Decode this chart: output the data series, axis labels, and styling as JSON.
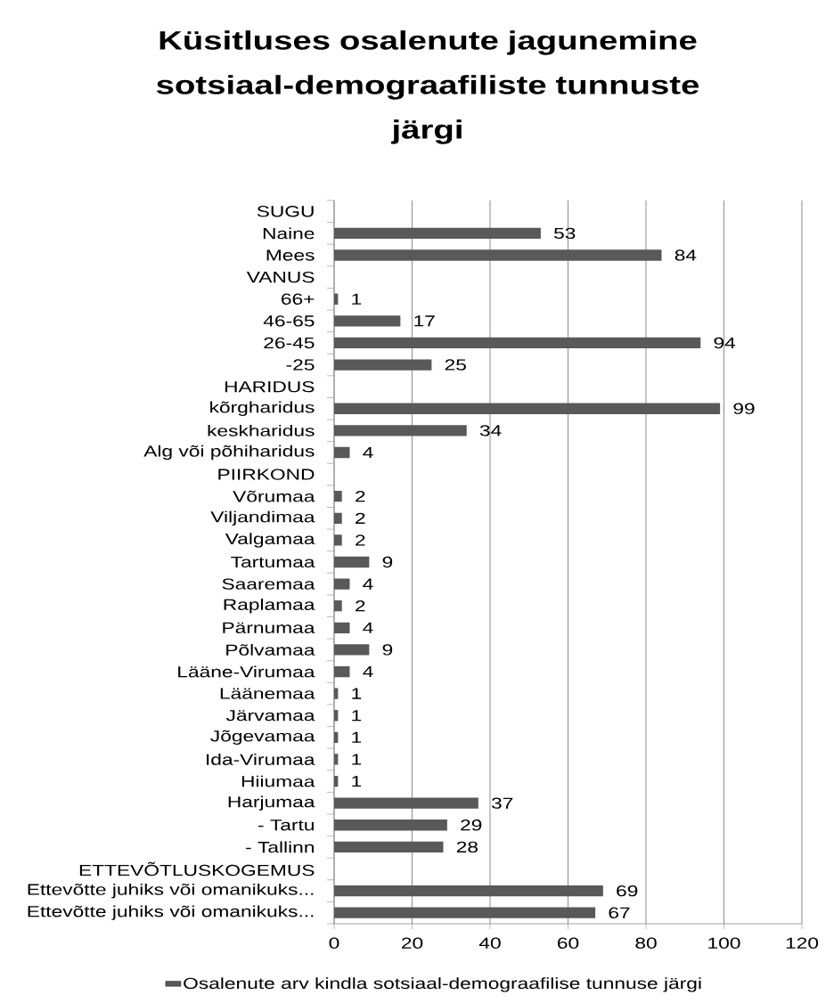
{
  "chart_data": {
    "type": "bar",
    "orientation": "horizontal",
    "title": "Küsitluses osalenute jagunemine sotsiaal-demograafiliste tunnuste järgi",
    "categories": [
      "SUGU",
      "Naine",
      "Mees",
      "VANUS",
      "66+",
      "46-65",
      "26-45",
      "-25",
      "HARIDUS",
      "kõrgharidus",
      "keskharidus",
      "Alg või põhiharidus",
      "PIIRKOND",
      "Võrumaa",
      "Viljandimaa",
      "Valgamaa",
      "Tartumaa",
      "Saaremaa",
      "Raplamaa",
      "Pärnumaa",
      "Põlvamaa",
      "Lääne-Virumaa",
      "Läänemaa",
      "Järvamaa",
      "Jõgevamaa",
      "Ida-Virumaa",
      "Hiiumaa",
      "Harjumaa",
      "- Tartu",
      "- Tallinn",
      "ETTEVÕTLUSKOGEMUS",
      "Ettevõtte juhiks või omanikuks...",
      "Ettevõtte juhiks või omanikuks..."
    ],
    "series": [
      {
        "name": "Osalenute arv kindla sotsiaal-demograafilise tunnuse järgi",
        "color": "#595959",
        "values": [
          null,
          53,
          84,
          null,
          1,
          17,
          94,
          25,
          null,
          99,
          34,
          4,
          null,
          2,
          2,
          2,
          9,
          4,
          2,
          4,
          9,
          4,
          1,
          1,
          1,
          1,
          1,
          37,
          29,
          28,
          null,
          69,
          67
        ]
      }
    ],
    "xlim": [
      0,
      120
    ],
    "xticks": [
      0,
      20,
      40,
      60,
      80,
      100,
      120
    ],
    "grid": "x",
    "legend": "bottom",
    "data_labels": true
  }
}
